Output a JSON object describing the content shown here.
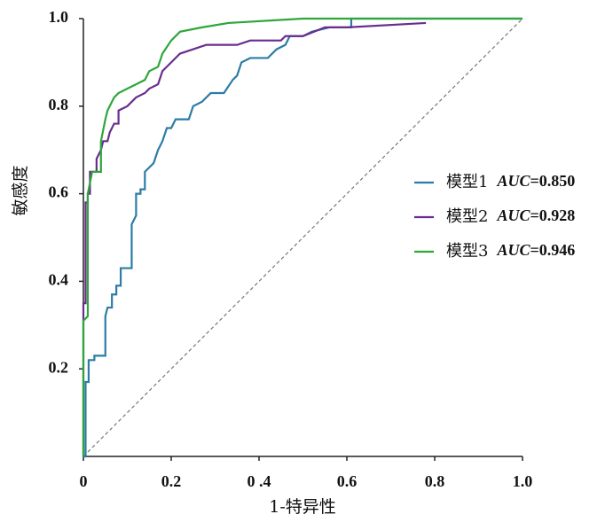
{
  "chart_data": {
    "type": "line",
    "x_label": "1-特异性",
    "y_label": "敏感度",
    "auc_name": "AUC",
    "xlim": [
      0,
      1
    ],
    "ylim": [
      0,
      1
    ],
    "xticks": [
      0,
      0.2,
      {
        "value": 0.4,
        "label": "0 .4"
      },
      0.6,
      0.8,
      {
        "value": 1,
        "label": "1.0"
      }
    ],
    "yticks": [
      0.2,
      0.4,
      0.6,
      0.8,
      {
        "value": 1,
        "label": "1.0"
      }
    ],
    "reference_line": true,
    "legend": "right",
    "series": [
      {
        "name": "模型1",
        "color": "#2b7ca6",
        "auc": {
          "value": 0.85,
          "label": "=0.850"
        },
        "x": [
          0,
          0.005,
          0.005,
          0.012,
          0.012,
          0.025,
          0.025,
          0.05,
          0.05,
          0.055,
          0.065,
          0.065,
          0.075,
          0.075,
          0.085,
          0.085,
          0.11,
          0.11,
          0.12,
          0.12,
          0.13,
          0.13,
          0.14,
          0.14,
          0.16,
          0.17,
          0.18,
          0.19,
          0.2,
          0.21,
          0.24,
          0.25,
          0.27,
          0.29,
          0.32,
          0.34,
          0.35,
          0.36,
          0.38,
          0.42,
          0.44,
          0.46,
          0.47,
          0.5,
          0.52,
          0.56,
          0.61,
          0.61,
          1
        ],
        "y": [
          0,
          0,
          0.17,
          0.17,
          0.22,
          0.22,
          0.23,
          0.23,
          0.32,
          0.34,
          0.34,
          0.37,
          0.37,
          0.39,
          0.39,
          0.43,
          0.43,
          0.53,
          0.55,
          0.6,
          0.6,
          0.61,
          0.61,
          0.65,
          0.67,
          0.7,
          0.72,
          0.75,
          0.75,
          0.77,
          0.77,
          0.8,
          0.81,
          0.83,
          0.83,
          0.86,
          0.87,
          0.9,
          0.91,
          0.91,
          0.93,
          0.94,
          0.96,
          0.96,
          0.97,
          0.98,
          0.98,
          1,
          1
        ]
      },
      {
        "name": "模型2",
        "color": "#6a2d8f",
        "auc": {
          "value": 0.928,
          "label": "=0.928"
        },
        "x": [
          0,
          0,
          0.005,
          0.005,
          0.01,
          0.01,
          0.015,
          0.015,
          0.03,
          0.03,
          0.04,
          0.045,
          0.055,
          0.06,
          0.07,
          0.08,
          0.08,
          0.1,
          0.12,
          0.14,
          0.15,
          0.17,
          0.18,
          0.2,
          0.22,
          0.25,
          0.28,
          0.35,
          0.38,
          0.45,
          0.46,
          0.5,
          0.55,
          0.6,
          0.78
        ],
        "y": [
          0,
          0.35,
          0.35,
          0.58,
          0.58,
          0.6,
          0.6,
          0.65,
          0.65,
          0.68,
          0.7,
          0.72,
          0.72,
          0.74,
          0.76,
          0.76,
          0.79,
          0.8,
          0.82,
          0.83,
          0.84,
          0.85,
          0.88,
          0.9,
          0.92,
          0.93,
          0.94,
          0.94,
          0.95,
          0.95,
          0.96,
          0.96,
          0.98,
          0.98,
          0.99
        ]
      },
      {
        "name": "模型3",
        "color": "#2ea63a",
        "auc": {
          "value": 0.946,
          "label": "=0.946"
        },
        "x": [
          0,
          0,
          0.01,
          0.01,
          0.02,
          0.04,
          0.04,
          0.05,
          0.055,
          0.06,
          0.07,
          0.08,
          0.1,
          0.12,
          0.14,
          0.15,
          0.17,
          0.18,
          0.2,
          0.22,
          0.27,
          0.33,
          0.5,
          1
        ],
        "y": [
          0,
          0.31,
          0.32,
          0.6,
          0.65,
          0.65,
          0.72,
          0.77,
          0.79,
          0.8,
          0.82,
          0.83,
          0.84,
          0.85,
          0.86,
          0.88,
          0.89,
          0.92,
          0.95,
          0.97,
          0.98,
          0.99,
          1,
          1
        ]
      }
    ]
  }
}
